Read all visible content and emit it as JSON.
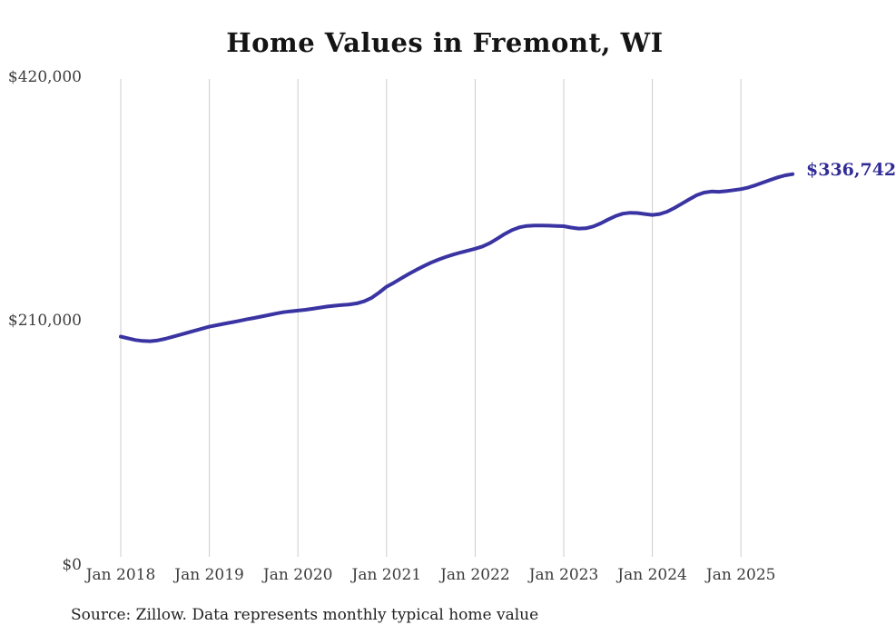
{
  "chart_data": {
    "type": "line",
    "title": "Home Values in Fremont, WI",
    "source_note": "Source: Zillow. Data represents monthly typical home value",
    "end_label": "$336,742",
    "latest_value": 336742,
    "ylim": [
      0,
      420000
    ],
    "y_tick_labels": [
      "$0",
      "$210,000",
      "$420,000"
    ],
    "x_tick_labels": [
      "Jan 2018",
      "Jan 2019",
      "Jan 2020",
      "Jan 2021",
      "Jan 2022",
      "Jan 2023",
      "Jan 2024",
      "Jan 2025"
    ],
    "grid": "vertical-only",
    "grid_color": "#cccccc",
    "legend": "none",
    "series": [
      {
        "name": "Monthly typical home value",
        "color": "#3a34a3",
        "x": [
          "2018-01",
          "2018-02",
          "2018-03",
          "2018-04",
          "2018-05",
          "2018-06",
          "2018-07",
          "2018-08",
          "2018-09",
          "2018-10",
          "2018-11",
          "2018-12",
          "2019-01",
          "2019-02",
          "2019-03",
          "2019-04",
          "2019-05",
          "2019-06",
          "2019-07",
          "2019-08",
          "2019-09",
          "2019-10",
          "2019-11",
          "2019-12",
          "2020-01",
          "2020-02",
          "2020-03",
          "2020-04",
          "2020-05",
          "2020-06",
          "2020-07",
          "2020-08",
          "2020-09",
          "2020-10",
          "2020-11",
          "2020-12",
          "2021-01",
          "2021-02",
          "2021-03",
          "2021-04",
          "2021-05",
          "2021-06",
          "2021-07",
          "2021-08",
          "2021-09",
          "2021-10",
          "2021-11",
          "2021-12",
          "2022-01",
          "2022-02",
          "2022-03",
          "2022-04",
          "2022-05",
          "2022-06",
          "2022-07",
          "2022-08",
          "2022-09",
          "2022-10",
          "2022-11",
          "2022-12",
          "2023-01",
          "2023-02",
          "2023-03",
          "2023-04",
          "2023-05",
          "2023-06",
          "2023-07",
          "2023-08",
          "2023-09",
          "2023-10",
          "2023-11",
          "2023-12",
          "2024-01",
          "2024-02",
          "2024-03",
          "2024-04",
          "2024-05",
          "2024-06",
          "2024-07",
          "2024-08",
          "2024-09",
          "2024-10",
          "2024-11",
          "2024-12",
          "2025-01",
          "2025-02",
          "2025-03",
          "2025-04",
          "2025-05",
          "2025-06",
          "2025-07",
          "2025-08"
        ],
        "values": [
          196500,
          195000,
          193500,
          192700,
          192500,
          193200,
          194500,
          196200,
          198000,
          199800,
          201500,
          203300,
          205000,
          206300,
          207500,
          208700,
          210000,
          211300,
          212500,
          213700,
          215000,
          216300,
          217500,
          218300,
          218900,
          219600,
          220500,
          221500,
          222400,
          223100,
          223700,
          224200,
          225200,
          227000,
          230000,
          234500,
          239500,
          243000,
          246800,
          250500,
          254000,
          257200,
          260200,
          262800,
          265200,
          267200,
          269000,
          270700,
          272300,
          274300,
          277200,
          281000,
          285000,
          288500,
          290800,
          292000,
          292400,
          292300,
          292200,
          292000,
          291800,
          290600,
          289700,
          290000,
          291500,
          294200,
          297500,
          300500,
          302600,
          303400,
          303100,
          302300,
          301500,
          302300,
          304300,
          307500,
          311200,
          315000,
          318500,
          320800,
          321700,
          321500,
          322000,
          322900,
          323800,
          325200,
          327200,
          329500,
          331800,
          334000,
          335700,
          336742
        ]
      }
    ]
  }
}
